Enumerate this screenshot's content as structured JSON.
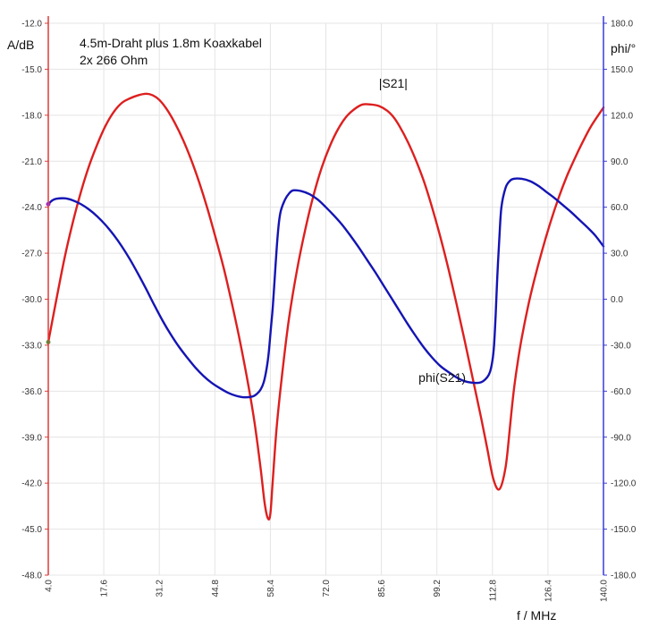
{
  "chart_data": {
    "type": "line",
    "title_lines": [
      "4.5m-Draht plus 1.8m Koaxkabel",
      "2x 266 Ohm"
    ],
    "xlabel": "f / MHz",
    "ylabel_left": "A/dB",
    "ylabel_right": "phi/°",
    "xlim": [
      4.0,
      140.0
    ],
    "ylim_left": [
      -48.0,
      -12.0
    ],
    "ylim_right": [
      -180.0,
      180.0
    ],
    "x_ticks": [
      "4.0",
      "17.6",
      "31.2",
      "44.8",
      "58.4",
      "72.0",
      "85.6",
      "99.2",
      "112.8",
      "126.4",
      "140.0"
    ],
    "y_left_ticks": [
      "-12.0",
      "-15.0",
      "-18.0",
      "-21.0",
      "-24.0",
      "-27.0",
      "-30.0",
      "-33.0",
      "-36.0",
      "-39.0",
      "-42.0",
      "-45.0",
      "-48.0"
    ],
    "y_right_ticks": [
      "180.0",
      "150.0",
      "120.0",
      "90.0",
      "60.0",
      "30.0",
      "0.0",
      "-30.0",
      "-60.0",
      "-90.0",
      "-120.0",
      "-150.0",
      "-180.0"
    ],
    "grid": true,
    "colors": {
      "s21": "#dd1f1f",
      "phi": "#1414b4",
      "left_axis": "#dd3a3a",
      "right_axis": "#3a3ad8",
      "grid": "#e4e4e4"
    },
    "series": [
      {
        "name": "|S21|",
        "axis": "left",
        "x": [
          4.0,
          6.0,
          8.0,
          10.0,
          12.0,
          14.0,
          16.0,
          18.0,
          20.0,
          22.0,
          24.0,
          26.0,
          28.0,
          29.6,
          31.2,
          33.0,
          35.0,
          37.0,
          39.0,
          41.0,
          43.0,
          45.0,
          47.0,
          49.0,
          51.0,
          53.0,
          54.5,
          56.0,
          57.0,
          57.8,
          58.4,
          59.0,
          60.0,
          61.5,
          63.0,
          65.0,
          67.0,
          69.0,
          71.0,
          73.0,
          75.0,
          77.0,
          79.0,
          81.0,
          83.0,
          85.0,
          87.0,
          88.5,
          90.0,
          92.0,
          94.0,
          96.0,
          98.0,
          100.0,
          102.0,
          104.0,
          106.0,
          108.0,
          110.0,
          111.5,
          113.0,
          114.5,
          116.0,
          117.0,
          117.6,
          118.2,
          119.0,
          120.0,
          121.5,
          123.0,
          125.0,
          127.0,
          129.0,
          131.0,
          133.0,
          135.0,
          137.0,
          140.0
        ],
        "values": [
          -32.8,
          -30.0,
          -27.3,
          -25.0,
          -23.0,
          -21.3,
          -19.9,
          -18.7,
          -17.8,
          -17.2,
          -16.9,
          -16.7,
          -16.6,
          -16.7,
          -17.0,
          -17.6,
          -18.5,
          -19.6,
          -20.9,
          -22.4,
          -24.1,
          -26.0,
          -28.0,
          -30.3,
          -32.8,
          -35.6,
          -38.0,
          -41.0,
          -43.3,
          -44.3,
          -44.0,
          -41.8,
          -38.2,
          -34.4,
          -31.2,
          -28.0,
          -25.4,
          -23.2,
          -21.4,
          -20.0,
          -18.9,
          -18.1,
          -17.6,
          -17.3,
          -17.3,
          -17.4,
          -17.7,
          -18.1,
          -18.7,
          -19.7,
          -20.9,
          -22.3,
          -24.0,
          -25.9,
          -28.0,
          -30.3,
          -32.7,
          -35.2,
          -37.7,
          -39.7,
          -41.7,
          -42.4,
          -41.0,
          -38.6,
          -37.0,
          -35.6,
          -34.1,
          -32.5,
          -30.5,
          -28.8,
          -26.8,
          -25.0,
          -23.4,
          -22.0,
          -20.8,
          -19.7,
          -18.7,
          -17.5
        ]
      },
      {
        "name": "phi(S21)",
        "axis": "right",
        "x": [
          4.0,
          5.0,
          6.0,
          8.0,
          10.0,
          12.0,
          14.0,
          16.0,
          18.0,
          20.0,
          22.0,
          24.0,
          26.0,
          28.0,
          30.0,
          32.0,
          34.0,
          36.0,
          38.0,
          40.0,
          42.0,
          44.0,
          46.0,
          48.0,
          50.0,
          52.0,
          54.0,
          55.0,
          56.0,
          56.8,
          57.5,
          58.0,
          58.5,
          59.0,
          59.5,
          60.0,
          60.5,
          61.0,
          62.0,
          63.0,
          64.0,
          66.0,
          68.0,
          70.0,
          72.0,
          74.0,
          76.0,
          78.0,
          80.0,
          82.0,
          84.0,
          86.0,
          88.0,
          90.0,
          92.0,
          94.0,
          96.0,
          98.0,
          100.0,
          102.0,
          104.0,
          106.0,
          108.0,
          109.5,
          110.5,
          111.5,
          112.2,
          112.8,
          113.2,
          113.6,
          114.0,
          114.5,
          115.0,
          116.0,
          117.0,
          118.0,
          120.0,
          122.0,
          124.0,
          126.0,
          128.0,
          130.0,
          132.0,
          134.0,
          136.0,
          138.0,
          140.0
        ],
        "values": [
          62.0,
          64.5,
          65.5,
          65.8,
          64.5,
          62.0,
          58.5,
          54.0,
          48.5,
          42.0,
          34.5,
          26.0,
          16.5,
          6.5,
          -4.0,
          -14.0,
          -23.0,
          -31.0,
          -38.0,
          -44.5,
          -50.0,
          -54.5,
          -58.0,
          -61.0,
          -63.0,
          -64.0,
          -63.5,
          -62.0,
          -59.0,
          -54.0,
          -45.0,
          -35.0,
          -20.0,
          -5.0,
          15.0,
          35.0,
          50.0,
          58.0,
          65.0,
          69.0,
          71.0,
          70.5,
          68.5,
          65.0,
          60.0,
          54.5,
          48.5,
          41.5,
          34.0,
          26.0,
          18.0,
          9.5,
          1.0,
          -7.5,
          -16.0,
          -24.0,
          -31.5,
          -38.0,
          -43.5,
          -47.5,
          -51.0,
          -53.5,
          -54.5,
          -54.5,
          -53.5,
          -51.0,
          -47.5,
          -40.0,
          -30.0,
          -10.0,
          15.0,
          40.0,
          60.0,
          72.5,
          77.0,
          78.5,
          78.5,
          77.0,
          74.0,
          70.0,
          66.0,
          61.5,
          57.0,
          52.0,
          47.0,
          41.5,
          34.5
        ]
      }
    ],
    "annotations": [
      {
        "text": "|S21|",
        "x": 88.5,
        "y": -16.2,
        "axis": "left"
      },
      {
        "text": "phi(S21)",
        "x": 100.5,
        "y": -54.0,
        "axis": "right"
      }
    ]
  }
}
